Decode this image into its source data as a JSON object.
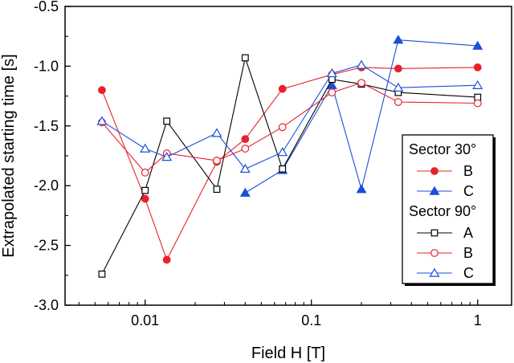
{
  "chart_data": {
    "type": "line",
    "xlabel": "Field H [T]",
    "ylabel": "Extrapolated starting time [s]",
    "xscale": "log",
    "xlim": [
      0.0033,
      1.6
    ],
    "ylim": [
      -3.0,
      -0.5
    ],
    "x_ticks": [
      0.01,
      0.1,
      1
    ],
    "x_tick_labels": [
      "0.01",
      "0.1",
      "1"
    ],
    "y_ticks": [
      -3.0,
      -2.5,
      -2.0,
      -1.5,
      -1.0,
      -0.5
    ],
    "y_tick_labels": [
      "-3.0",
      "-2.5",
      "-2.0",
      "-1.5",
      "-1.0",
      "-0.5"
    ],
    "grid": false,
    "legend_position": "right",
    "legend": {
      "groups": [
        {
          "title": "Sector 30°",
          "entries": [
            "B",
            "C"
          ]
        },
        {
          "title": "Sector 90°",
          "entries": [
            "A",
            "B",
            "C"
          ]
        }
      ]
    },
    "series": [
      {
        "group": "Sector 30°",
        "label": "B",
        "marker": "circle-filled",
        "color": "#e8212a",
        "points": [
          [
            0.0055,
            -1.2
          ],
          [
            0.01,
            -2.11
          ],
          [
            0.0135,
            -2.62
          ],
          [
            0.027,
            -1.8
          ],
          [
            0.04,
            -1.61
          ],
          [
            0.067,
            -1.19
          ],
          [
            0.133,
            -1.07
          ],
          [
            0.2,
            -1.01
          ],
          [
            0.333,
            -1.02
          ],
          [
            1.0,
            -1.01
          ]
        ]
      },
      {
        "group": "Sector 30°",
        "label": "C",
        "marker": "triangle-filled",
        "color": "#1a4fd8",
        "points": [
          [
            0.04,
            -2.06
          ],
          [
            0.067,
            -1.87
          ],
          [
            0.133,
            -1.16
          ],
          [
            0.2,
            -2.03
          ],
          [
            0.333,
            -0.78
          ],
          [
            1.0,
            -0.83
          ]
        ]
      },
      {
        "group": "Sector 90°",
        "label": "A",
        "marker": "square-open",
        "color": "#000000",
        "points": [
          [
            0.0055,
            -2.74
          ],
          [
            0.01,
            -2.04
          ],
          [
            0.0135,
            -1.46
          ],
          [
            0.027,
            -2.03
          ],
          [
            0.04,
            -0.93
          ],
          [
            0.067,
            -1.86
          ],
          [
            0.133,
            -1.11
          ],
          [
            0.2,
            -1.15
          ],
          [
            0.333,
            -1.22
          ],
          [
            1.0,
            -1.26
          ]
        ]
      },
      {
        "group": "Sector 90°",
        "label": "B",
        "marker": "circle-open",
        "color": "#e8212a",
        "points": [
          [
            0.0055,
            -1.47
          ],
          [
            0.01,
            -1.89
          ],
          [
            0.0135,
            -1.73
          ],
          [
            0.027,
            -1.79
          ],
          [
            0.04,
            -1.69
          ],
          [
            0.067,
            -1.51
          ],
          [
            0.133,
            -1.22
          ],
          [
            0.2,
            -1.14
          ],
          [
            0.333,
            -1.3
          ],
          [
            1.0,
            -1.31
          ]
        ]
      },
      {
        "group": "Sector 90°",
        "label": "C",
        "marker": "triangle-open",
        "color": "#1a4fd8",
        "points": [
          [
            0.0055,
            -1.46
          ],
          [
            0.01,
            -1.69
          ],
          [
            0.0135,
            -1.76
          ],
          [
            0.027,
            -1.56
          ],
          [
            0.04,
            -1.86
          ],
          [
            0.067,
            -1.72
          ],
          [
            0.133,
            -1.06
          ],
          [
            0.2,
            -0.99
          ],
          [
            0.333,
            -1.18
          ],
          [
            1.0,
            -1.16
          ]
        ]
      }
    ]
  }
}
